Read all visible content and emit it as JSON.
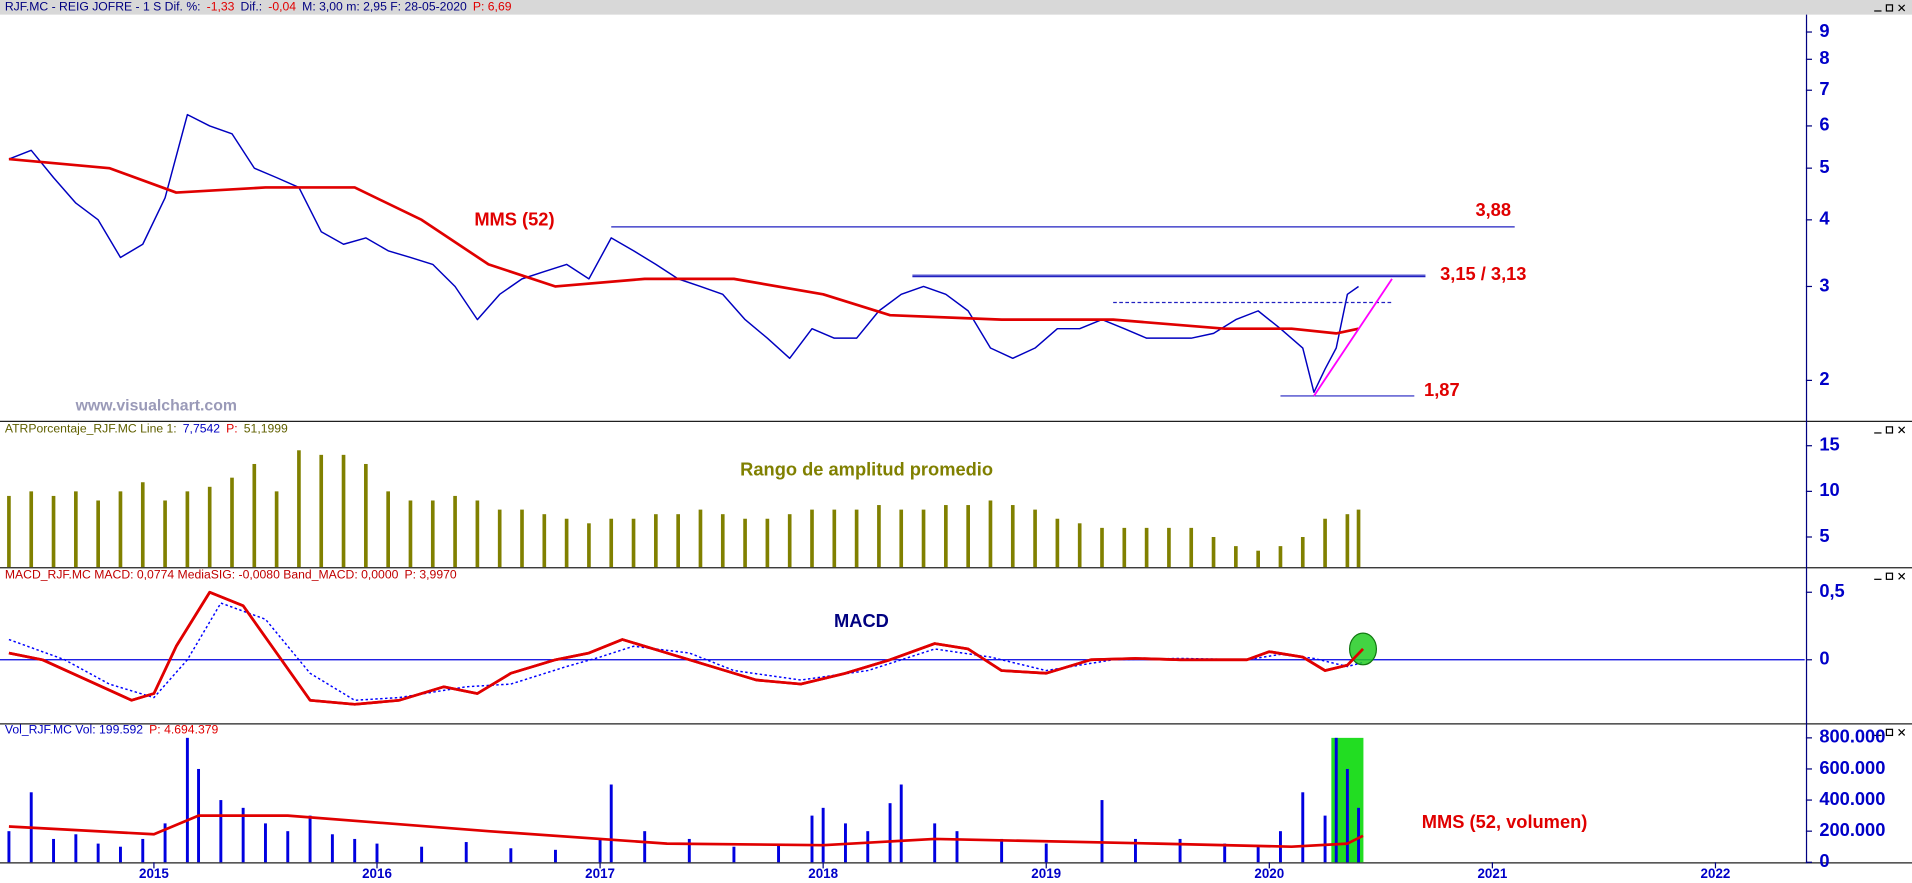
{
  "chart_data": [
    {
      "type": "line",
      "log": true,
      "info": [
        {
          "text": "RJF.MC - REIG JOFRE - 1 S  Dif. %:",
          "color": "#000080"
        },
        {
          "text": "-1,33",
          "color": "#e00000"
        },
        {
          "text": "Dif.:",
          "color": "#000080"
        },
        {
          "text": "-0,04",
          "color": "#e00000"
        },
        {
          "text": "M: 3,00  m: 2,95  F: 28-05-2020",
          "color": "#000080"
        },
        {
          "text": "P: 6,69",
          "color": "#e00000"
        }
      ],
      "watermark": "www.visualchart.com",
      "xlim": [
        2014.31,
        2022.4
      ],
      "ylim": [
        1.68,
        9.6
      ],
      "yticks": [
        2,
        3,
        4,
        5,
        6,
        7,
        8,
        9
      ],
      "series": [
        {
          "color": "#0000c0",
          "x": [
            2014.35,
            2014.45,
            2014.55,
            2014.65,
            2014.75,
            2014.85,
            2014.95,
            2015.05,
            2015.15,
            2015.25,
            2015.35,
            2015.45,
            2015.55,
            2015.65,
            2015.75,
            2015.85,
            2015.95,
            2016.05,
            2016.15,
            2016.25,
            2016.35,
            2016.45,
            2016.55,
            2016.65,
            2016.75,
            2016.85,
            2016.95,
            2017.05,
            2017.15,
            2017.25,
            2017.35,
            2017.45,
            2017.55,
            2017.65,
            2017.75,
            2017.85,
            2017.95,
            2018.05,
            2018.15,
            2018.25,
            2018.35,
            2018.45,
            2018.55,
            2018.65,
            2018.75,
            2018.85,
            2018.95,
            2019.05,
            2019.15,
            2019.25,
            2019.35,
            2019.45,
            2019.55,
            2019.65,
            2019.75,
            2019.85,
            2019.95,
            2020.05,
            2020.15,
            2020.2,
            2020.25,
            2020.3,
            2020.35,
            2020.4
          ],
          "values": [
            5.2,
            5.4,
            4.8,
            4.3,
            4.0,
            3.4,
            3.6,
            4.4,
            6.3,
            6.0,
            5.8,
            5.0,
            4.8,
            4.6,
            3.8,
            3.6,
            3.7,
            3.5,
            3.4,
            3.3,
            3.0,
            2.6,
            2.9,
            3.1,
            3.2,
            3.3,
            3.1,
            3.7,
            3.5,
            3.3,
            3.1,
            3.0,
            2.9,
            2.6,
            2.4,
            2.2,
            2.5,
            2.4,
            2.4,
            2.7,
            2.9,
            3.0,
            2.9,
            2.7,
            2.3,
            2.2,
            2.3,
            2.5,
            2.5,
            2.6,
            2.5,
            2.4,
            2.4,
            2.4,
            2.45,
            2.6,
            2.7,
            2.5,
            2.3,
            1.9,
            2.1,
            2.3,
            2.9,
            3.0
          ]
        },
        {
          "name": "MMS (52)",
          "color": "#e00000",
          "width": 2.2,
          "x": [
            2014.35,
            2014.8,
            2015.1,
            2015.5,
            2015.9,
            2016.2,
            2016.5,
            2016.8,
            2017.2,
            2017.6,
            2018.0,
            2018.3,
            2018.8,
            2019.3,
            2019.8,
            2020.1,
            2020.3,
            2020.4
          ],
          "values": [
            5.2,
            5.0,
            4.5,
            4.6,
            4.6,
            4.0,
            3.3,
            3.0,
            3.1,
            3.1,
            2.9,
            2.65,
            2.6,
            2.6,
            2.5,
            2.5,
            2.45,
            2.5
          ]
        }
      ],
      "levels": [
        {
          "values": [
            3.88
          ],
          "x": [
            2017.05,
            2021.1
          ],
          "label": "3,88"
        },
        {
          "values": [
            3.15,
            3.13
          ],
          "x": [
            2018.4,
            2020.7
          ],
          "label": "3,15 / 3,13"
        },
        {
          "values": [
            2.8
          ],
          "x": [
            2019.3,
            2020.55
          ],
          "dash": true
        },
        {
          "values": [
            1.87
          ],
          "x": [
            2020.05,
            2020.65
          ],
          "label": "1,87"
        }
      ],
      "trend": {
        "x": [
          2020.2,
          2020.55
        ],
        "y": [
          1.87,
          3.1
        ],
        "color": "#ff00ff"
      }
    },
    {
      "type": "bar",
      "info": [
        {
          "text": "ATRPorcentaje_RJF.MC  Line 1:",
          "color": "#606000"
        },
        {
          "text": "7,7542",
          "color": "#0000c0"
        },
        {
          "text": "P:",
          "color": "#e00000"
        },
        {
          "text": "51,1999",
          "color": "#606000"
        }
      ],
      "title": "Rango de amplitud promedio",
      "xlim": [
        2014.31,
        2022.4
      ],
      "ylim": [
        1.7,
        17.2
      ],
      "yticks": [
        5,
        10,
        15
      ],
      "series": [
        {
          "color": "#808000",
          "x": [
            2014.35,
            2014.45,
            2014.55,
            2014.65,
            2014.75,
            2014.85,
            2014.95,
            2015.05,
            2015.15,
            2015.25,
            2015.35,
            2015.45,
            2015.55,
            2015.65,
            2015.75,
            2015.85,
            2015.95,
            2016.05,
            2016.15,
            2016.25,
            2016.35,
            2016.45,
            2016.55,
            2016.65,
            2016.75,
            2016.85,
            2016.95,
            2017.05,
            2017.15,
            2017.25,
            2017.35,
            2017.45,
            2017.55,
            2017.65,
            2017.75,
            2017.85,
            2017.95,
            2018.05,
            2018.15,
            2018.25,
            2018.35,
            2018.45,
            2018.55,
            2018.65,
            2018.75,
            2018.85,
            2018.95,
            2019.05,
            2019.15,
            2019.25,
            2019.35,
            2019.45,
            2019.55,
            2019.65,
            2019.75,
            2019.85,
            2019.95,
            2020.05,
            2020.15,
            2020.25,
            2020.35,
            2020.4
          ],
          "values": [
            9.5,
            10,
            9.5,
            10,
            9,
            10,
            11,
            9,
            10,
            10.5,
            11.5,
            13,
            10,
            14.5,
            14,
            14,
            13,
            10,
            9,
            9,
            9.5,
            9,
            8,
            8,
            7.5,
            7,
            6.5,
            7,
            7,
            7.5,
            7.5,
            8,
            7.5,
            7,
            7,
            7.5,
            8,
            8,
            8,
            8.5,
            8,
            8,
            8.5,
            8.5,
            9,
            8.5,
            8,
            7,
            6.5,
            6,
            6,
            6,
            6,
            6,
            5,
            4,
            3.5,
            4,
            5,
            7,
            7.5,
            8
          ]
        }
      ]
    },
    {
      "type": "line",
      "zero_line": true,
      "info": [
        {
          "text": "MACD_RJF.MC  MACD: 0,0774  MediaSIG: -0,0080  Band_MACD: 0,0000",
          "color": "#c00000"
        },
        {
          "text": "P: 3,9970",
          "color": "#c00000"
        }
      ],
      "xlim": [
        2014.31,
        2022.4
      ],
      "ylim": [
        -0.47,
        0.65
      ],
      "yticks": [
        {
          "value": 0.5,
          "label": "0,5"
        },
        0
      ],
      "series": [
        {
          "name": "MACD",
          "color": "#e00000",
          "width": 2.2,
          "x": [
            2014.35,
            2014.5,
            2014.7,
            2014.9,
            2015.0,
            2015.1,
            2015.25,
            2015.4,
            2015.55,
            2015.7,
            2015.9,
            2016.1,
            2016.3,
            2016.45,
            2016.6,
            2016.8,
            2016.95,
            2017.1,
            2017.3,
            2017.5,
            2017.7,
            2017.9,
            2018.1,
            2018.3,
            2018.5,
            2018.65,
            2018.8,
            2019.0,
            2019.2,
            2019.4,
            2019.6,
            2019.9,
            2020.0,
            2020.15,
            2020.25,
            2020.35,
            2020.42
          ],
          "values": [
            0.05,
            0,
            -0.15,
            -0.3,
            -0.25,
            0.1,
            0.5,
            0.4,
            0.05,
            -0.3,
            -0.33,
            -0.3,
            -0.2,
            -0.25,
            -0.1,
            0,
            0.05,
            0.15,
            0.05,
            -0.05,
            -0.15,
            -0.18,
            -0.1,
            0,
            0.12,
            0.08,
            -0.08,
            -0.1,
            0,
            0.01,
            0,
            0,
            0.06,
            0.02,
            -0.08,
            -0.04,
            0.08
          ]
        },
        {
          "color": "#0000ff",
          "dash": true,
          "x": [
            2014.35,
            2014.6,
            2014.8,
            2015.0,
            2015.15,
            2015.3,
            2015.5,
            2015.7,
            2015.9,
            2016.1,
            2016.4,
            2016.6,
            2016.85,
            2017.0,
            2017.15,
            2017.4,
            2017.6,
            2017.9,
            2018.2,
            2018.5,
            2018.75,
            2019.0,
            2019.3,
            2019.6,
            2019.9,
            2020.05,
            2020.2,
            2020.35,
            2020.42
          ],
          "values": [
            0.15,
            0,
            -0.18,
            -0.28,
            0,
            0.42,
            0.3,
            -0.1,
            -0.3,
            -0.28,
            -0.2,
            -0.18,
            -0.05,
            0.02,
            0.1,
            0.05,
            -0.08,
            -0.15,
            -0.08,
            0.08,
            0.02,
            -0.08,
            0,
            0.01,
            0,
            0.04,
            0.01,
            -0.05,
            -0.02
          ]
        }
      ]
    },
    {
      "type": "bar",
      "info": [
        {
          "text": "Vol_RJF.MC  Vol: 199.592",
          "color": "#0000c0"
        },
        {
          "text": "P: 4.694.379",
          "color": "#e00000"
        }
      ],
      "xlim": [
        2014.31,
        2022.4
      ],
      "xticks": [
        2015,
        2016,
        2017,
        2018,
        2019,
        2020,
        2021,
        2022
      ],
      "ylim": [
        0,
        800000
      ],
      "yticks": [
        0,
        {
          "value": 200000,
          "label": "200.000"
        },
        {
          "value": 400000,
          "label": "400.000"
        },
        {
          "value": 600000,
          "label": "600.000"
        },
        {
          "value": 800000,
          "label": "800.000"
        }
      ],
      "series": [
        {
          "color": "#0000e0",
          "x": [
            2014.35,
            2014.45,
            2014.55,
            2014.65,
            2014.75,
            2014.85,
            2014.95,
            2015.05,
            2015.15,
            2015.2,
            2015.3,
            2015.4,
            2015.5,
            2015.6,
            2015.7,
            2015.8,
            2015.9,
            2016.0,
            2016.2,
            2016.4,
            2016.6,
            2016.8,
            2017.0,
            2017.05,
            2017.2,
            2017.4,
            2017.6,
            2017.8,
            2017.95,
            2018.0,
            2018.1,
            2018.2,
            2018.3,
            2018.35,
            2018.5,
            2018.6,
            2018.8,
            2019.0,
            2019.25,
            2019.4,
            2019.6,
            2019.8,
            2019.95,
            2020.05,
            2020.15,
            2020.25,
            2020.3,
            2020.35,
            2020.4
          ],
          "values": [
            200000,
            450000,
            150000,
            180000,
            120000,
            100000,
            150000,
            250000,
            800000,
            600000,
            400000,
            350000,
            250000,
            200000,
            300000,
            180000,
            150000,
            120000,
            100000,
            130000,
            90000,
            80000,
            150000,
            500000,
            200000,
            150000,
            100000,
            120000,
            300000,
            350000,
            250000,
            200000,
            380000,
            500000,
            250000,
            200000,
            150000,
            120000,
            400000,
            150000,
            150000,
            120000,
            100000,
            200000,
            450000,
            300000,
            800000,
            600000,
            350000
          ]
        },
        {
          "name": "MMS (52, volumen)",
          "type": "line",
          "color": "#e00000",
          "width": 2.2,
          "x": [
            2014.35,
            2015.0,
            2015.2,
            2015.6,
            2016.5,
            2017.3,
            2018.0,
            2018.5,
            2019.5,
            2020.1,
            2020.35,
            2020.42
          ],
          "values": [
            230000,
            180000,
            300000,
            300000,
            200000,
            120000,
            110000,
            150000,
            120000,
            100000,
            120000,
            170000
          ]
        }
      ]
    }
  ]
}
